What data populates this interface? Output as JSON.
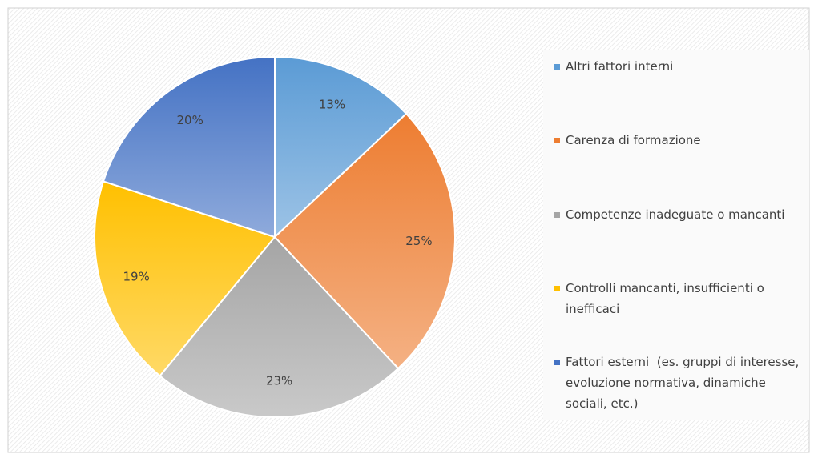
{
  "chart_data": {
    "type": "pie",
    "categories": [
      "Altri fattori interni",
      "Carenza di formazione",
      "Competenze inadeguate o mancanti",
      "Controlli mancanti, insufficienti o inefficaci",
      "Fattori esterni  (es. gruppi di interesse, evoluzione normativa, dinamiche sociali, etc.)"
    ],
    "values": [
      13,
      25,
      23,
      19,
      20
    ],
    "value_labels": [
      "13%",
      "25%",
      "23%",
      "19%",
      "20%"
    ],
    "colors": [
      "#5b9bd5",
      "#ed7d31",
      "#a5a5a5",
      "#ffc000",
      "#4472c4"
    ],
    "legend": "right"
  }
}
